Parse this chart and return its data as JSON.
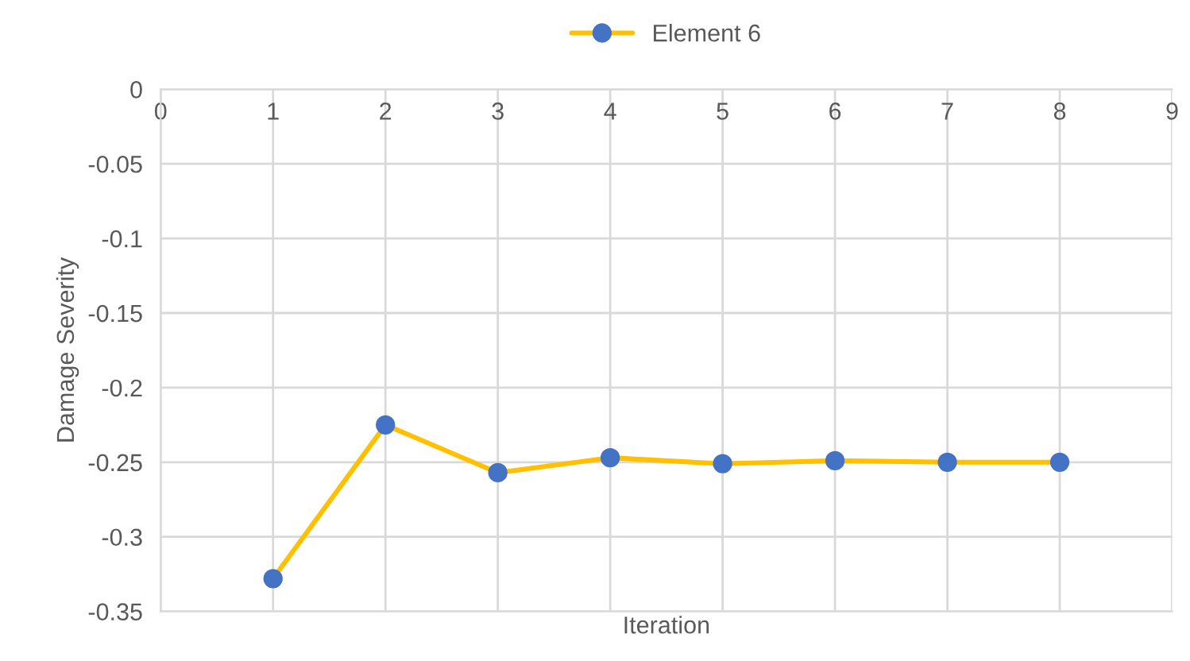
{
  "chart_data": {
    "type": "line",
    "xlabel": "Iteration",
    "ylabel": "Damage Severity",
    "x": [
      1,
      2,
      3,
      4,
      5,
      6,
      7,
      8
    ],
    "series": [
      {
        "name": "Element 6",
        "color": "#ffc000",
        "values": [
          -0.328,
          -0.225,
          -0.257,
          -0.247,
          -0.251,
          -0.249,
          -0.25,
          -0.25
        ]
      }
    ],
    "xlim": [
      0,
      9
    ],
    "xticks": [
      0,
      1,
      2,
      3,
      4,
      5,
      6,
      7,
      8,
      9
    ],
    "ylim": [
      -0.35,
      0
    ],
    "yticks": [
      -0.35,
      -0.3,
      -0.25,
      -0.2,
      -0.15,
      -0.1,
      -0.05,
      0
    ],
    "grid": true,
    "legend": "top",
    "marker": "circle",
    "line_style": "solid"
  }
}
